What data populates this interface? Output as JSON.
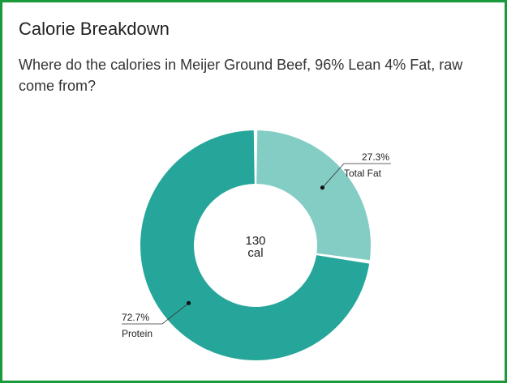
{
  "card": {
    "title": "Calorie Breakdown",
    "subtitle": "Where do the calories in Meijer Ground Beef, 96% Lean 4% Fat, raw come from?"
  },
  "chart_data": {
    "type": "pie",
    "donut": true,
    "center_value": "130",
    "center_unit": "cal",
    "slices": [
      {
        "label": "Total Fat",
        "percent": 27.3,
        "percent_label": "27.3%",
        "color": "#84cdc4"
      },
      {
        "label": "Protein",
        "percent": 72.7,
        "percent_label": "72.7%",
        "color": "#26a69a"
      }
    ]
  }
}
